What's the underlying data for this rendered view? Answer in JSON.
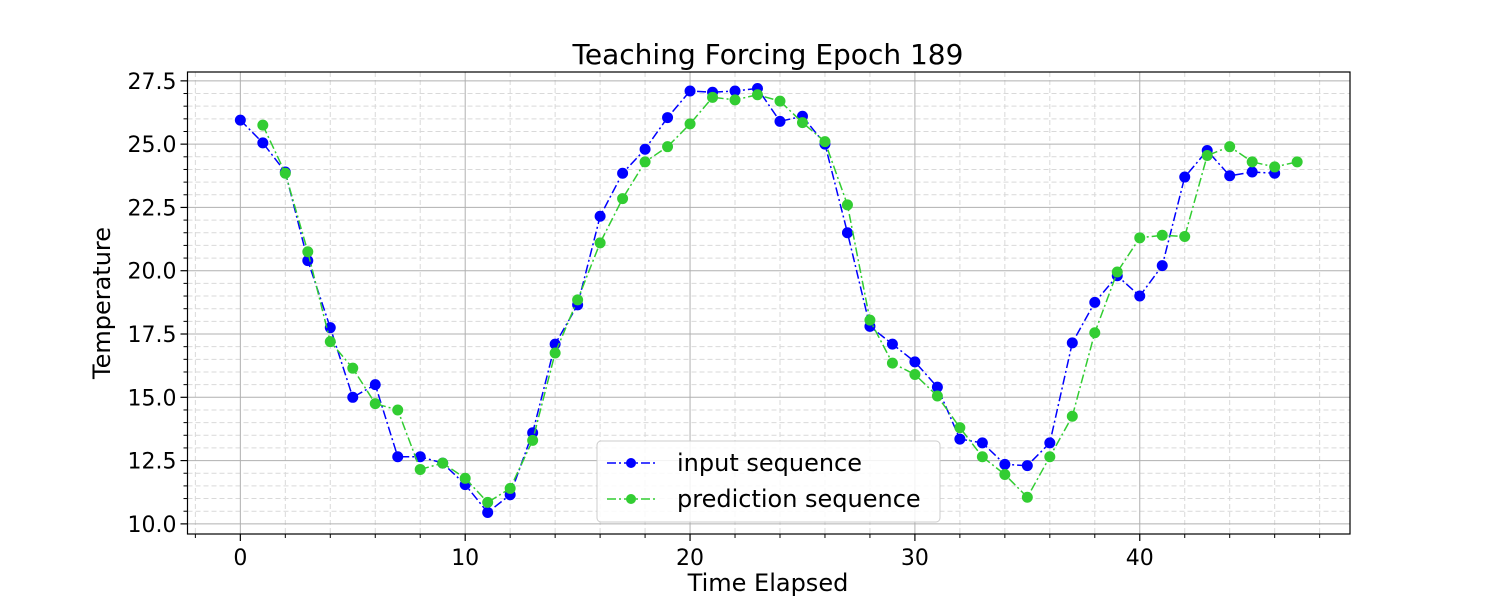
{
  "chart_data": {
    "type": "line",
    "title": "Teaching Forcing   Epoch 189",
    "xlabel": "Time Elapsed",
    "ylabel": "Temperature",
    "xlim": [
      -2.35,
      49.35
    ],
    "ylim": [
      9.6,
      27.85
    ],
    "xticks": [
      0,
      10,
      20,
      30,
      40
    ],
    "yticks": [
      10.0,
      12.5,
      15.0,
      17.5,
      20.0,
      22.5,
      25.0,
      27.5
    ],
    "grid": true,
    "minor_grid": true,
    "legend_position": "lower-center",
    "series": [
      {
        "name": "input sequence",
        "color": "#0000ff",
        "x": [
          0,
          1,
          2,
          3,
          4,
          5,
          6,
          7,
          8,
          9,
          10,
          11,
          12,
          13,
          14,
          15,
          16,
          17,
          18,
          19,
          20,
          21,
          22,
          23,
          24,
          25,
          26,
          27,
          28,
          29,
          30,
          31,
          32,
          33,
          34,
          35,
          36,
          37,
          38,
          39,
          40,
          41,
          42,
          43,
          44,
          45,
          46
        ],
        "values": [
          25.95,
          25.05,
          23.9,
          20.4,
          17.75,
          15.0,
          15.5,
          12.65,
          12.65,
          12.4,
          11.55,
          10.45,
          11.15,
          13.6,
          17.1,
          18.65,
          22.15,
          23.85,
          24.8,
          26.05,
          27.1,
          27.05,
          27.1,
          27.2,
          25.9,
          26.1,
          25.0,
          21.5,
          17.8,
          17.1,
          16.4,
          15.4,
          13.35,
          13.2,
          12.35,
          12.3,
          13.2,
          17.15,
          18.75,
          19.8,
          19.0,
          20.2,
          23.7,
          24.75,
          23.75,
          23.9,
          23.85
        ]
      },
      {
        "name": "prediction sequence",
        "color": "#32cd32",
        "x": [
          1,
          2,
          3,
          4,
          5,
          6,
          7,
          8,
          9,
          10,
          11,
          12,
          13,
          14,
          15,
          16,
          17,
          18,
          19,
          20,
          21,
          22,
          23,
          24,
          25,
          26,
          27,
          28,
          29,
          30,
          31,
          32,
          33,
          34,
          35,
          36,
          37,
          38,
          39,
          40,
          41,
          42,
          43,
          44,
          45,
          46,
          47
        ],
        "values": [
          25.75,
          23.85,
          20.75,
          17.2,
          16.15,
          14.75,
          14.5,
          12.15,
          12.4,
          11.8,
          10.85,
          11.4,
          13.3,
          16.75,
          18.85,
          21.1,
          22.85,
          24.3,
          24.9,
          25.8,
          26.85,
          26.75,
          26.95,
          26.7,
          25.85,
          25.1,
          22.6,
          18.05,
          16.35,
          15.9,
          15.05,
          13.8,
          12.65,
          11.95,
          11.05,
          12.65,
          14.25,
          17.55,
          19.95,
          21.3,
          21.4,
          21.35,
          24.55,
          24.9,
          24.3,
          24.1,
          24.3
        ]
      }
    ]
  }
}
